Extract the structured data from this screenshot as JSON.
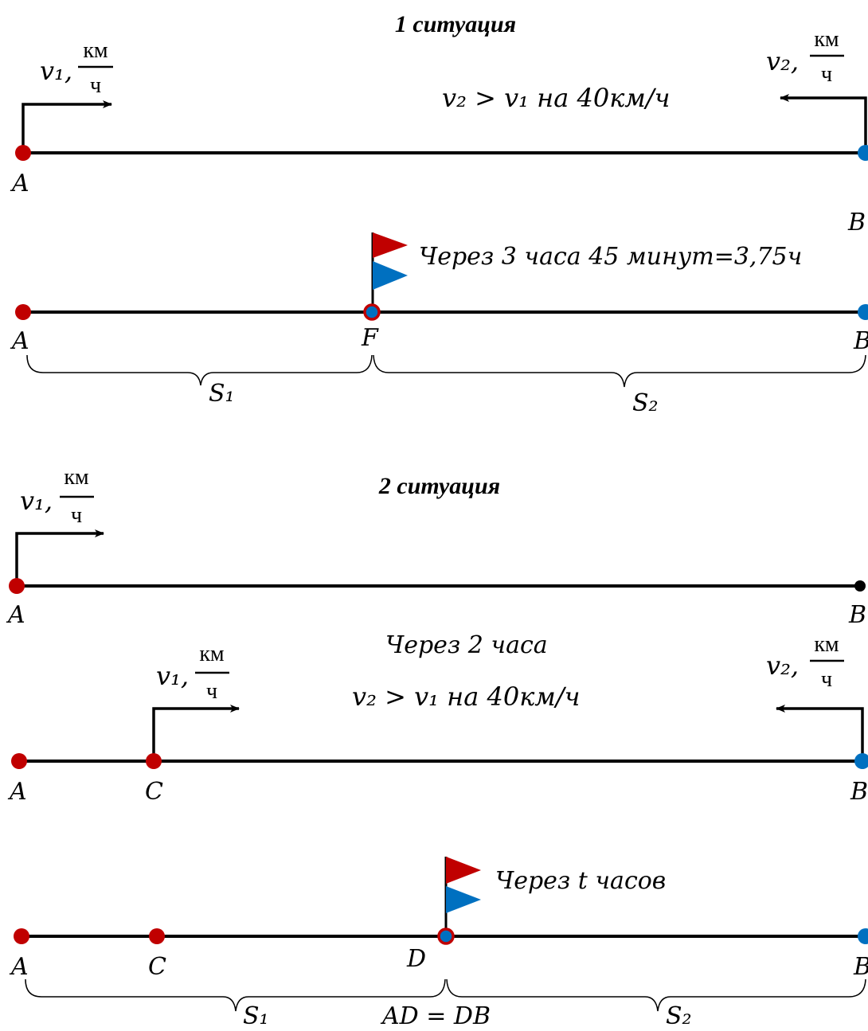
{
  "colors": {
    "line": "#000000",
    "point_a": "#c00000",
    "point_b": "#0070c0",
    "flag_red": "#c00000",
    "flag_blue": "#0070c0"
  },
  "situation1": {
    "title": "1 ситуация",
    "condition": "v₂ > v₁ на 40км/ч",
    "v1_label": "v₁,",
    "v2_label": "v₂,",
    "unit_num": "км",
    "unit_den": "ч",
    "point_a": "A",
    "point_b": "B",
    "meeting_note": "Через 3 часа 45 минут=3,75ч",
    "point_f": "F",
    "s1": "S₁",
    "s2": "S₂"
  },
  "situation2": {
    "title": "2 ситуация",
    "v1_label": "v₁,",
    "v2_label": "v₂,",
    "unit_num": "км",
    "unit_den": "ч",
    "point_a": "A",
    "point_b": "B",
    "point_c": "C",
    "point_d": "D",
    "after_two_hours": "Через 2 часа",
    "condition": "v₂ > v₁ на 40км/ч",
    "meeting_note": "Через t часов",
    "s1": "S₁",
    "s2": "S₂",
    "equality": "AD = DB"
  }
}
